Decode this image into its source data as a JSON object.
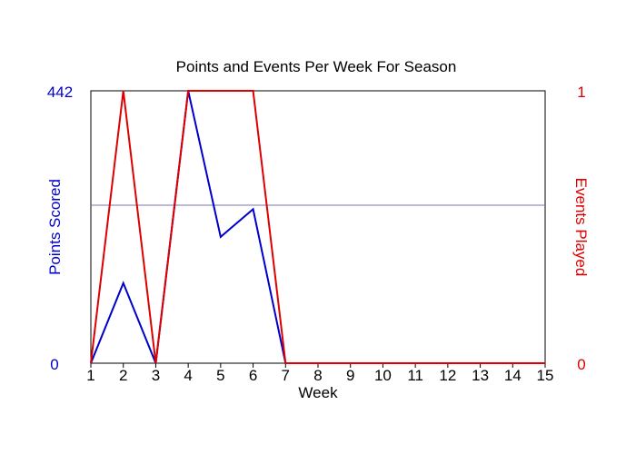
{
  "chart_data": {
    "type": "line",
    "title": "Points and Events Per Week For Season",
    "xlabel": "Week",
    "x": [
      1,
      2,
      3,
      4,
      5,
      6,
      7,
      8,
      9,
      10,
      11,
      12,
      13,
      14,
      15
    ],
    "xlim": [
      1,
      15
    ],
    "grid": false,
    "series": [
      {
        "axis": "left",
        "values": [
          0,
          130,
          0,
          442,
          205,
          250,
          0,
          0,
          0,
          0,
          0,
          0,
          0,
          0,
          0
        ],
        "color": "#0000cc"
      },
      {
        "axis": "right",
        "values": [
          0,
          1,
          0,
          1,
          1,
          1,
          0,
          0,
          0,
          0,
          0,
          0,
          0,
          0,
          0
        ],
        "color": "#dd0000"
      }
    ],
    "left_axis": {
      "label": "Points Scored",
      "ylim": [
        0,
        442
      ],
      "tick_labels": [
        "442",
        "0"
      ],
      "color": "#0000cc"
    },
    "right_axis": {
      "label": "Events Played",
      "ylim": [
        0,
        1
      ],
      "tick_labels": [
        "1",
        "0"
      ],
      "color": "#dd0000"
    },
    "reference_line": {
      "value": 0.58,
      "axis": "right",
      "color": "#7777aa"
    }
  }
}
